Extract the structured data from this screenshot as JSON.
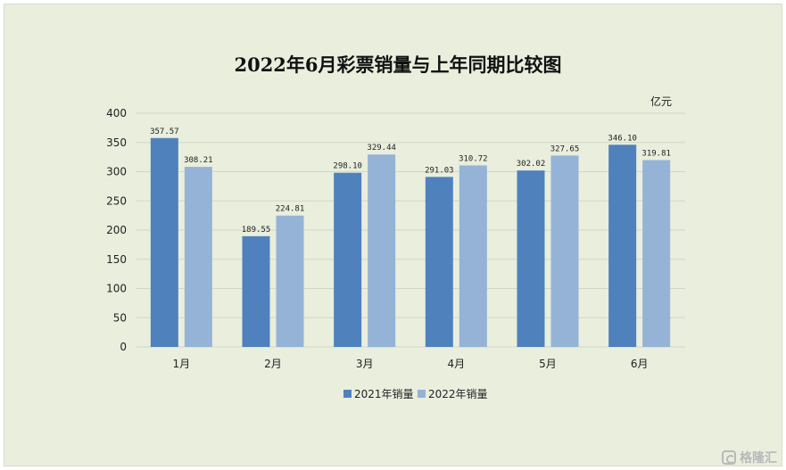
{
  "chart_data": {
    "type": "bar",
    "title": "2022年6月彩票销量与上年同期比较图",
    "unit": "亿元",
    "categories": [
      "1月",
      "2月",
      "3月",
      "4月",
      "5月",
      "6月"
    ],
    "series": [
      {
        "name": "2021年销量",
        "values": [
          357.57,
          189.55,
          298.1,
          291.03,
          302.02,
          346.1
        ],
        "labels": [
          "357.57",
          "189.55",
          "298.10",
          "291.03",
          "302.02",
          "346.10"
        ],
        "color": "#4f81bd"
      },
      {
        "name": "2022年销量",
        "values": [
          308.21,
          224.81,
          329.44,
          310.72,
          327.65,
          319.81
        ],
        "labels": [
          "308.21",
          "224.81",
          "329.44",
          "310.72",
          "327.65",
          "319.81"
        ],
        "color": "#95b3d7"
      }
    ],
    "ylim": [
      0,
      400
    ],
    "yticks": [
      0,
      50,
      100,
      150,
      200,
      250,
      300,
      350,
      400
    ],
    "grid": true,
    "legend": "bottom"
  },
  "watermark": {
    "text": "格隆汇"
  },
  "colors": {
    "background": "#e9eedd",
    "grid": "#d3d7c6",
    "text": "#222222"
  }
}
